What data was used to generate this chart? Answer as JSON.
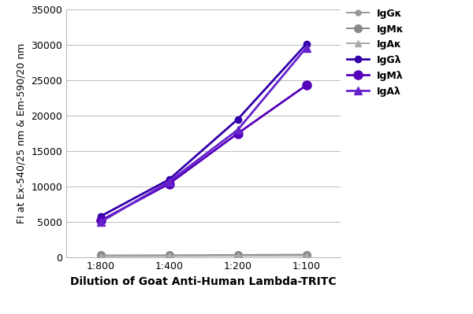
{
  "x_labels": [
    "1:800",
    "1:400",
    "1:200",
    "1:100"
  ],
  "x_positions": [
    0,
    1,
    2,
    3
  ],
  "series": [
    {
      "label": "IgGκ",
      "color": "#999999",
      "marker": "o",
      "markersize": 5,
      "linewidth": 1.4,
      "values": [
        200,
        220,
        250,
        280
      ]
    },
    {
      "label": "IgMκ",
      "color": "#888888",
      "marker": "o",
      "markersize": 7,
      "linewidth": 1.4,
      "values": [
        300,
        320,
        360,
        400
      ]
    },
    {
      "label": "IgAκ",
      "color": "#aaaaaa",
      "marker": "^",
      "markersize": 6,
      "linewidth": 1.4,
      "values": [
        180,
        200,
        230,
        260
      ]
    },
    {
      "label": "IgGλ",
      "color": "#3300aa",
      "marker": "o",
      "markersize": 6,
      "linewidth": 2.0,
      "values": [
        5800,
        11000,
        19500,
        30100
      ]
    },
    {
      "label": "IgMλ",
      "color": "#5500bb",
      "marker": "o",
      "markersize": 8,
      "linewidth": 2.0,
      "values": [
        5200,
        10400,
        17500,
        24300
      ]
    },
    {
      "label": "IgAλ",
      "color": "#6622cc",
      "marker": "^",
      "markersize": 7,
      "linewidth": 2.0,
      "values": [
        5000,
        10700,
        18000,
        29600
      ]
    }
  ],
  "xlabel": "Dilution of Goat Anti-Human Lambda-TRITC",
  "ylabel": "FI at Ex-540/25 nm & Em-590/20 nm",
  "ylim": [
    0,
    35000
  ],
  "yticks": [
    0,
    5000,
    10000,
    15000,
    20000,
    25000,
    30000,
    35000
  ],
  "title": "",
  "bg_color": "#ffffff",
  "grid_color": "#bbbbbb",
  "xlabel_fontsize": 10,
  "ylabel_fontsize": 9,
  "tick_fontsize": 9,
  "legend_fontsize": 9
}
